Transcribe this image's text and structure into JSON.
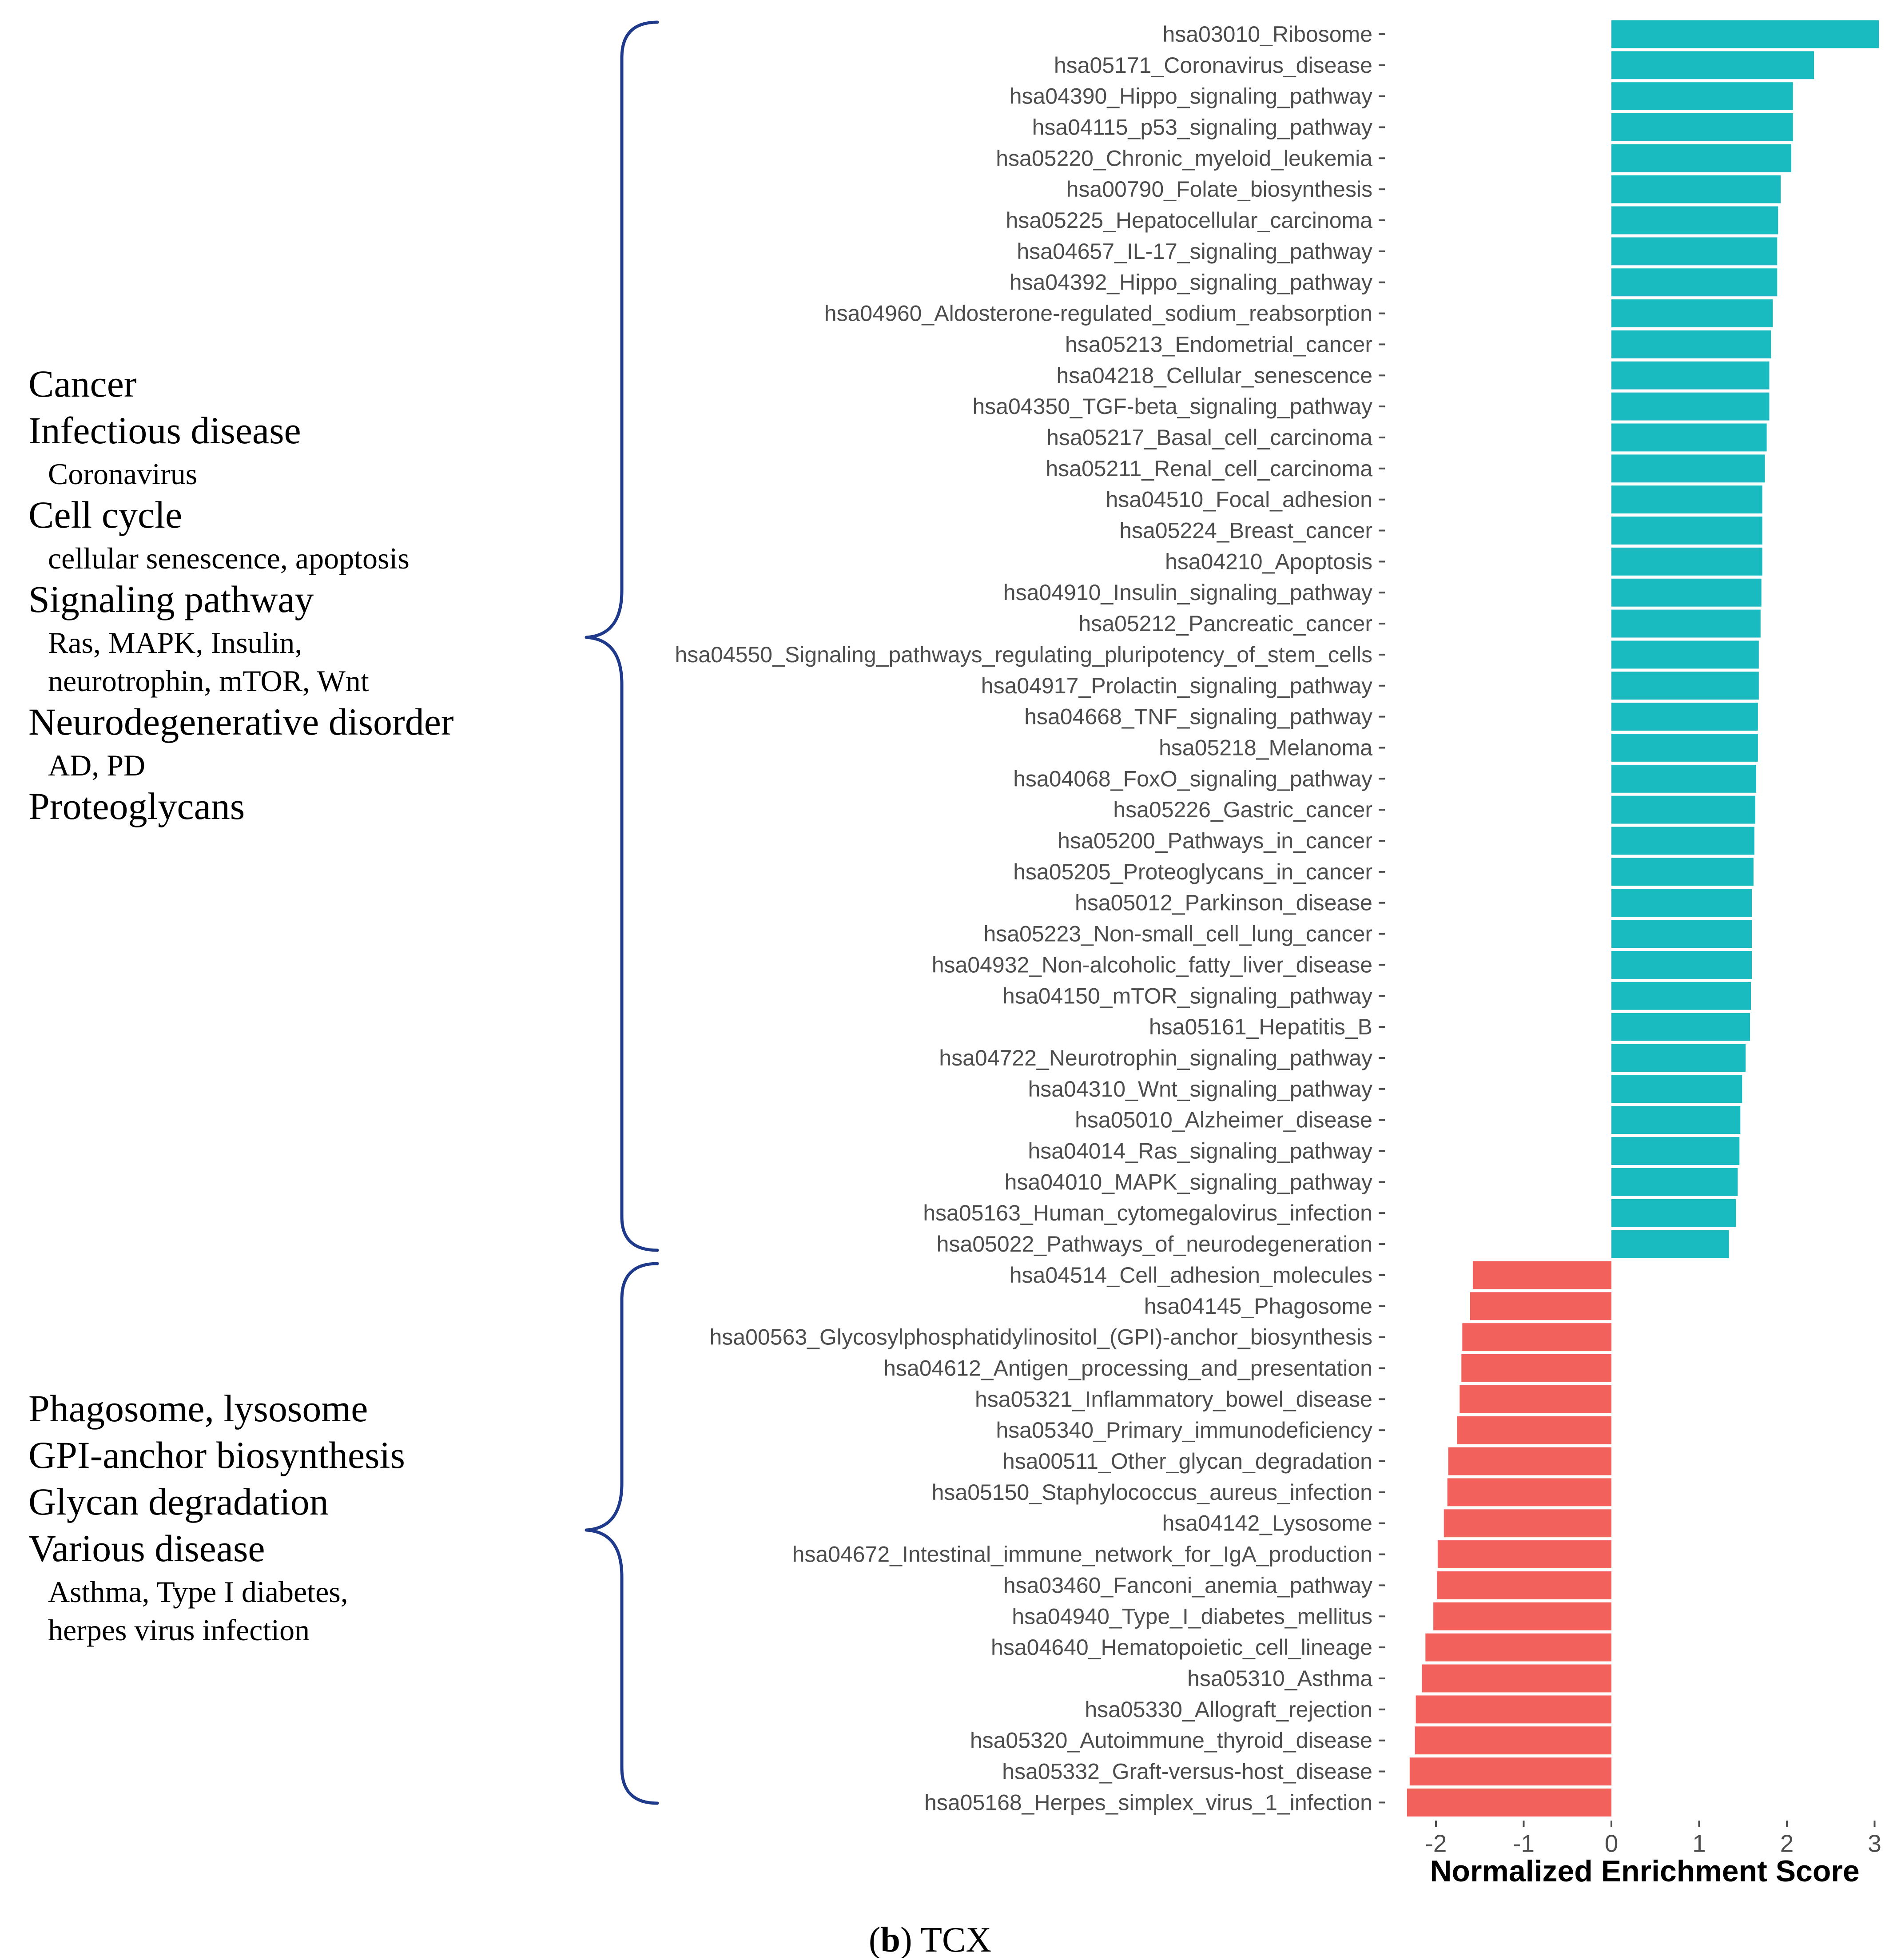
{
  "chart_data": {
    "type": "bar",
    "orientation": "horizontal",
    "xlabel": "Normalized Enrichment Score",
    "xlim": [
      -2.4,
      3.2
    ],
    "xticks": [
      -2,
      -1,
      0,
      1,
      2,
      3
    ],
    "xtick_labels": [
      "-2",
      "-1",
      "0",
      "1",
      "2",
      "3"
    ],
    "positive_color": "#1ABAC1",
    "negative_color": "#F2615C",
    "categories": [
      "hsa03010_Ribosome",
      "hsa05171_Coronavirus_disease",
      "hsa04390_Hippo_signaling_pathway",
      "hsa04115_p53_signaling_pathway",
      "hsa05220_Chronic_myeloid_leukemia",
      "hsa00790_Folate_biosynthesis",
      "hsa05225_Hepatocellular_carcinoma",
      "hsa04657_IL-17_signaling_pathway",
      "hsa04392_Hippo_signaling_pathway",
      "hsa04960_Aldosterone-regulated_sodium_reabsorption",
      "hsa05213_Endometrial_cancer",
      "hsa04218_Cellular_senescence",
      "hsa04350_TGF-beta_signaling_pathway",
      "hsa05217_Basal_cell_carcinoma",
      "hsa05211_Renal_cell_carcinoma",
      "hsa04510_Focal_adhesion",
      "hsa05224_Breast_cancer",
      "hsa04210_Apoptosis",
      "hsa04910_Insulin_signaling_pathway",
      "hsa05212_Pancreatic_cancer",
      "hsa04550_Signaling_pathways_regulating_pluripotency_of_stem_cells",
      "hsa04917_Prolactin_signaling_pathway",
      "hsa04668_TNF_signaling_pathway",
      "hsa05218_Melanoma",
      "hsa04068_FoxO_signaling_pathway",
      "hsa05226_Gastric_cancer",
      "hsa05200_Pathways_in_cancer",
      "hsa05205_Proteoglycans_in_cancer",
      "hsa05012_Parkinson_disease",
      "hsa05223_Non-small_cell_lung_cancer",
      "hsa04932_Non-alcoholic_fatty_liver_disease",
      "hsa04150_mTOR_signaling_pathway",
      "hsa05161_Hepatitis_B",
      "hsa04722_Neurotrophin_signaling_pathway",
      "hsa04310_Wnt_signaling_pathway",
      "hsa05010_Alzheimer_disease",
      "hsa04014_Ras_signaling_pathway",
      "hsa04010_MAPK_signaling_pathway",
      "hsa05163_Human_cytomegalovirus_infection",
      "hsa05022_Pathways_of_neurodegeneration",
      "hsa04514_Cell_adhesion_molecules",
      "hsa04145_Phagosome",
      "hsa00563_Glycosylphosphatidylinositol_(GPI)-anchor_biosynthesis",
      "hsa04612_Antigen_processing_and_presentation",
      "hsa05321_Inflammatory_bowel_disease",
      "hsa05340_Primary_immunodeficiency",
      "hsa00511_Other_glycan_degradation",
      "hsa05150_Staphylococcus_aureus_infection",
      "hsa04142_Lysosome",
      "hsa04672_Intestinal_immune_network_for_IgA_production",
      "hsa03460_Fanconi_anemia_pathway",
      "hsa04940_Type_I_diabetes_mellitus",
      "hsa04640_Hematopoietic_cell_lineage",
      "hsa05310_Asthma",
      "hsa05330_Allograft_rejection",
      "hsa05320_Autoimmune_thyroid_disease",
      "hsa05332_Graft-versus-host_disease",
      "hsa05168_Herpes_simplex_virus_1_infection"
    ],
    "values": [
      3.05,
      2.31,
      2.07,
      2.07,
      2.05,
      1.93,
      1.9,
      1.89,
      1.89,
      1.84,
      1.82,
      1.8,
      1.8,
      1.77,
      1.75,
      1.72,
      1.72,
      1.72,
      1.71,
      1.7,
      1.68,
      1.68,
      1.67,
      1.67,
      1.65,
      1.64,
      1.63,
      1.62,
      1.6,
      1.6,
      1.6,
      1.59,
      1.58,
      1.53,
      1.49,
      1.47,
      1.46,
      1.44,
      1.42,
      1.34,
      -1.58,
      -1.61,
      -1.7,
      -1.71,
      -1.73,
      -1.76,
      -1.86,
      -1.87,
      -1.91,
      -1.98,
      -1.99,
      -2.03,
      -2.12,
      -2.16,
      -2.23,
      -2.24,
      -2.3,
      -2.33
    ]
  },
  "annotations": {
    "upper": {
      "items": [
        {
          "text": "Cancer",
          "kind": "heading"
        },
        {
          "text": "Infectious disease",
          "kind": "heading"
        },
        {
          "text": "Coronavirus",
          "kind": "sub"
        },
        {
          "text": "Cell cycle",
          "kind": "heading"
        },
        {
          "text": "cellular senescence, apoptosis",
          "kind": "sub"
        },
        {
          "text": "Signaling pathway",
          "kind": "heading"
        },
        {
          "text": "Ras, MAPK, Insulin,",
          "kind": "sub"
        },
        {
          "text": "neurotrophin, mTOR, Wnt",
          "kind": "sub"
        },
        {
          "text": "Neurodegenerative disorder",
          "kind": "heading"
        },
        {
          "text": "AD, PD",
          "kind": "sub"
        },
        {
          "text": "Proteoglycans",
          "kind": "heading"
        }
      ]
    },
    "lower": {
      "items": [
        {
          "text": "Phagosome, lysosome",
          "kind": "heading"
        },
        {
          "text": "GPI-anchor biosynthesis",
          "kind": "heading"
        },
        {
          "text": "Glycan degradation",
          "kind": "heading"
        },
        {
          "text": "Various disease",
          "kind": "heading"
        },
        {
          "text": "Asthma, Type I diabetes,",
          "kind": "sub"
        },
        {
          "text": "herpes virus infection",
          "kind": "sub"
        }
      ]
    },
    "bracket_color": "#1F3A8A"
  },
  "caption": {
    "open": "(",
    "letter": "b",
    "rest": ") TCX"
  }
}
